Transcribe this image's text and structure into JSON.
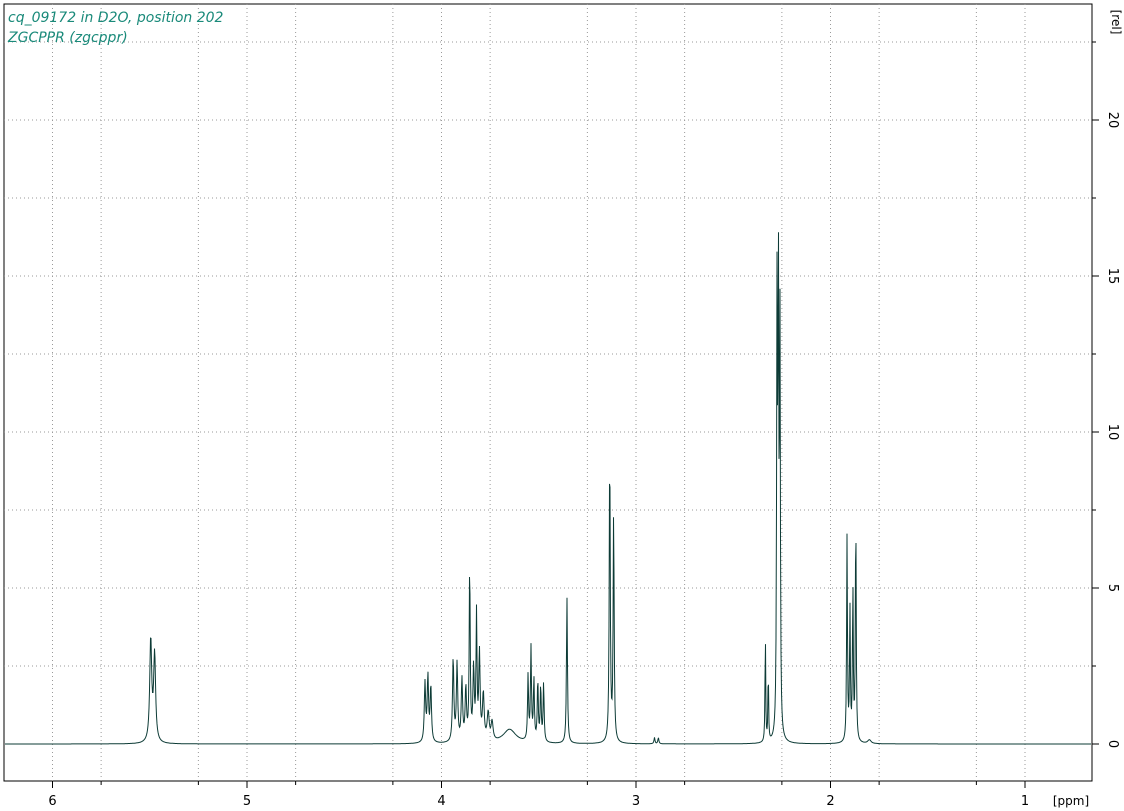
{
  "chart_data": {
    "type": "line",
    "title_lines": [
      "cq_09172 in D2O, position 202",
      "ZGCPPR (zgcppr)"
    ],
    "xlabel": "[ppm]",
    "ylabel": "[rel]",
    "xlim": [
      6.25,
      0.7
    ],
    "ylim": [
      -1.2,
      23.5
    ],
    "x_reversed": true,
    "x_ticks": [
      6,
      5,
      4,
      3,
      2,
      1
    ],
    "x_tick_labels": [
      "6",
      "5",
      "4",
      "3",
      "2",
      "1"
    ],
    "y_ticks": [
      0,
      5,
      10,
      15,
      20
    ],
    "y_tick_labels": [
      "0",
      "5",
      "10",
      "15",
      "20"
    ],
    "x_minor_gridlines": [
      5.75,
      5.25,
      4.75,
      4.25,
      3.75,
      3.25,
      2.75,
      2.25,
      1.75,
      1.25
    ],
    "y_minor_gridlines": [
      2.5,
      7.5,
      12.5,
      17.5,
      22.5
    ],
    "grid": true,
    "series": [
      {
        "color": "#0d3b36",
        "peaks": [
          {
            "x": 5.495,
            "h": 3.3,
            "w": 0.006
          },
          {
            "x": 5.475,
            "h": 2.8,
            "w": 0.006
          },
          {
            "x": 4.085,
            "h": 1.9,
            "w": 0.004
          },
          {
            "x": 4.07,
            "h": 2.1,
            "w": 0.004
          },
          {
            "x": 4.055,
            "h": 1.8,
            "w": 0.004
          },
          {
            "x": 3.94,
            "h": 2.7,
            "w": 0.004
          },
          {
            "x": 3.92,
            "h": 2.5,
            "w": 0.004
          },
          {
            "x": 3.895,
            "h": 2.0,
            "w": 0.004
          },
          {
            "x": 3.875,
            "h": 1.7,
            "w": 0.004
          },
          {
            "x": 3.855,
            "h": 5.7,
            "w": 0.003
          },
          {
            "x": 3.835,
            "h": 2.3,
            "w": 0.004
          },
          {
            "x": 3.82,
            "h": 4.0,
            "w": 0.003
          },
          {
            "x": 3.805,
            "h": 2.8,
            "w": 0.004
          },
          {
            "x": 3.785,
            "h": 1.5,
            "w": 0.005
          },
          {
            "x": 3.76,
            "h": 0.9,
            "w": 0.006
          },
          {
            "x": 3.74,
            "h": 0.6,
            "w": 0.006
          },
          {
            "x": 3.65,
            "h": 0.45,
            "w": 0.04
          },
          {
            "x": 3.555,
            "h": 2.1,
            "w": 0.003
          },
          {
            "x": 3.54,
            "h": 3.0,
            "w": 0.003
          },
          {
            "x": 3.525,
            "h": 2.0,
            "w": 0.003
          },
          {
            "x": 3.505,
            "h": 2.0,
            "w": 0.003
          },
          {
            "x": 3.49,
            "h": 1.8,
            "w": 0.003
          },
          {
            "x": 3.475,
            "h": 1.9,
            "w": 0.003
          },
          {
            "x": 3.355,
            "h": 4.7,
            "w": 0.003
          },
          {
            "x": 3.135,
            "h": 9.6,
            "w": 0.003
          },
          {
            "x": 3.115,
            "h": 7.4,
            "w": 0.003
          },
          {
            "x": 2.905,
            "h": 0.2,
            "w": 0.003
          },
          {
            "x": 2.885,
            "h": 0.2,
            "w": 0.003
          },
          {
            "x": 2.335,
            "h": 3.6,
            "w": 0.002
          },
          {
            "x": 2.32,
            "h": 2.4,
            "w": 0.002
          },
          {
            "x": 2.275,
            "h": 13.8,
            "w": 0.0025
          },
          {
            "x": 2.268,
            "h": 14.6,
            "w": 0.0025
          },
          {
            "x": 2.26,
            "h": 13.3,
            "w": 0.0025
          },
          {
            "x": 1.915,
            "h": 6.6,
            "w": 0.0025
          },
          {
            "x": 1.9,
            "h": 4.2,
            "w": 0.0025
          },
          {
            "x": 1.885,
            "h": 5.0,
            "w": 0.0025
          },
          {
            "x": 1.87,
            "h": 7.5,
            "w": 0.0025
          },
          {
            "x": 1.8,
            "h": 0.12,
            "w": 0.01
          }
        ]
      }
    ]
  }
}
